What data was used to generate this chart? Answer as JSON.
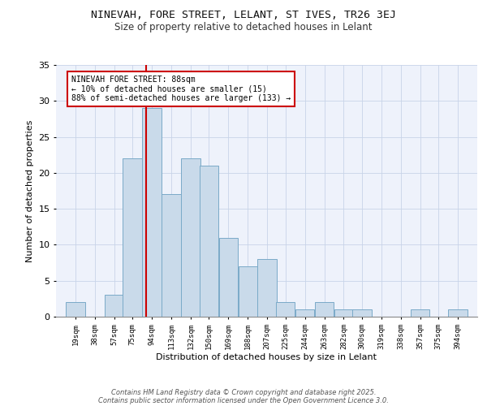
{
  "title1": "NINEVAH, FORE STREET, LELANT, ST IVES, TR26 3EJ",
  "title2": "Size of property relative to detached houses in Lelant",
  "xlabel": "Distribution of detached houses by size in Lelant",
  "ylabel": "Number of detached properties",
  "categories": [
    "19sqm",
    "38sqm",
    "57sqm",
    "75sqm",
    "94sqm",
    "113sqm",
    "132sqm",
    "150sqm",
    "169sqm",
    "188sqm",
    "207sqm",
    "225sqm",
    "244sqm",
    "263sqm",
    "282sqm",
    "300sqm",
    "319sqm",
    "338sqm",
    "357sqm",
    "375sqm",
    "394sqm"
  ],
  "values": [
    2,
    0,
    3,
    22,
    29,
    17,
    22,
    21,
    11,
    7,
    8,
    2,
    1,
    2,
    1,
    1,
    0,
    0,
    1,
    0,
    1
  ],
  "bar_color": "#c9daea",
  "bar_edge_color": "#7aaac8",
  "red_line_x": 88,
  "annotation_text": "NINEVAH FORE STREET: 88sqm\n← 10% of detached houses are smaller (15)\n88% of semi-detached houses are larger (133) →",
  "annotation_box_color": "#ffffff",
  "annotation_box_edge_color": "#cc0000",
  "ylim": [
    0,
    35
  ],
  "footer_line1": "Contains HM Land Registry data © Crown copyright and database right 2025.",
  "footer_line2": "Contains public sector information licensed under the Open Government Licence 3.0.",
  "bg_color": "#eef2fb",
  "grid_color": "#c8d4e8",
  "title1_fontsize": 9.5,
  "title2_fontsize": 8.5
}
